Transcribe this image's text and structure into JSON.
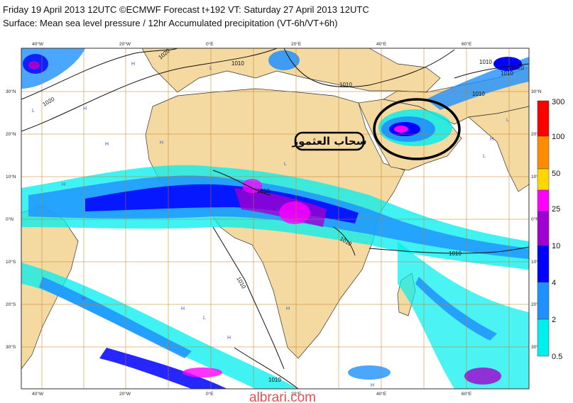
{
  "header": {
    "line1": "Friday 19 April 2013 12UTC ©ECMWF Forecast t+192 VT: Saturday 27 April 2013 12UTC",
    "line2": "Surface: Mean sea level pressure / 12hr Accumulated precipitation (VT-6h/VT+6h)"
  },
  "axes": {
    "top_lon_labels": [
      "40°W",
      "20°W",
      "0°E",
      "20°E",
      "40°E",
      "60°E"
    ],
    "bottom_lon_labels": [
      "40°W",
      "20°W",
      "0°E",
      "20°E",
      "40°E",
      "60°E"
    ],
    "left_lat_labels": [
      "30°N",
      "20°N",
      "10°N",
      "0°N",
      "10°S",
      "20°S",
      "30°S"
    ],
    "right_lat_labels": [
      "30°N",
      "20°N",
      "10°N",
      "0°N",
      "10°S",
      "20°S",
      "30°S"
    ]
  },
  "isobars": {
    "labels": [
      "1020",
      "1010",
      "1020",
      "1010",
      "1010",
      "1020",
      "1010",
      "1010",
      "1010",
      "1010",
      "1010",
      "1010",
      "1010"
    ]
  },
  "pressure_centers": {
    "letters": [
      "H",
      "H",
      "H",
      "L",
      "H",
      "L",
      "L",
      "H",
      "L",
      "H",
      "L",
      "L",
      "H",
      "H",
      "H",
      "L",
      "H",
      "H",
      "L"
    ]
  },
  "legend": {
    "labels": [
      "300",
      "100",
      "50",
      "25",
      "10",
      "4",
      "2",
      "0.5"
    ],
    "colors": [
      "#ff0000",
      "#ff8c00",
      "#ffd700",
      "#ff00ff",
      "#a000d0",
      "#0000ff",
      "#1e90ff",
      "#00eeee"
    ]
  },
  "annotation": {
    "arabic_label": "سحاب العثموز"
  },
  "watermark": "albrari.com",
  "colors": {
    "ocean": "#ffffff",
    "land": "#f4d9a0",
    "grid": "#c47a1e"
  }
}
